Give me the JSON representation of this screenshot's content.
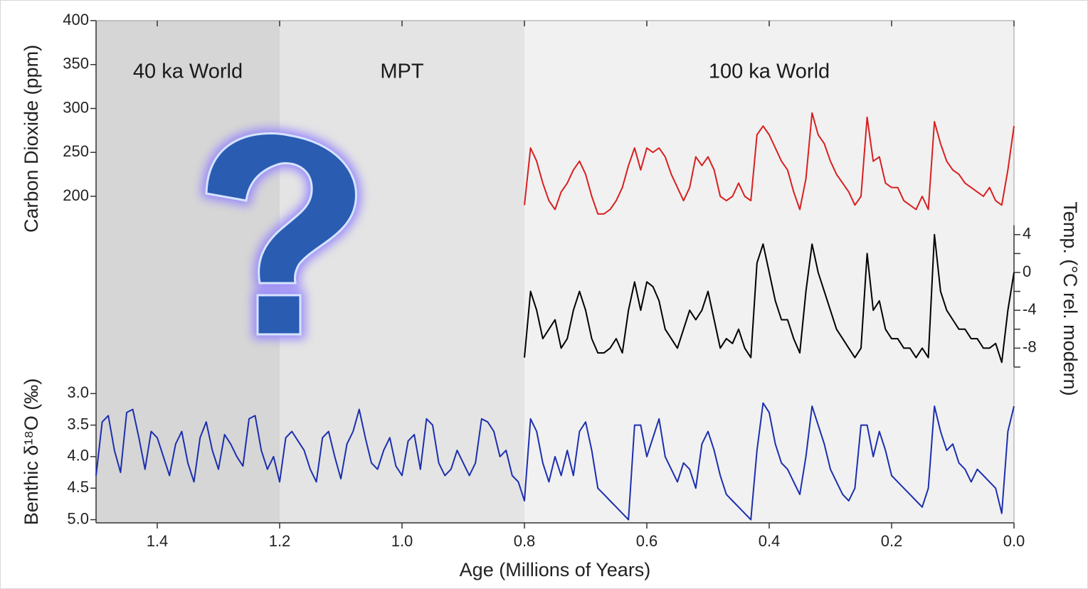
{
  "chart_data": {
    "type": "line",
    "xlabel": "Age (Millions of Years)",
    "ylabel": "Carbon Dioxide (ppm)",
    "y2label": "Temp. (°C rel. modern)",
    "y3label": "Benthic δ¹⁸O (‰)",
    "xlim": [
      1.5,
      0
    ],
    "xticks": [
      1.4,
      1.2,
      {
        "value": 1,
        "label": "1.0"
      },
      0.8,
      0.6,
      0.4,
      0.2,
      {
        "value": 0,
        "label": "0.0"
      }
    ],
    "ylim": [
      170,
      400
    ],
    "yticks": [
      200,
      250,
      300,
      350,
      400
    ],
    "y2lim": [
      -10,
      5
    ],
    "y2ticks": [
      4,
      0,
      -4,
      -8
    ],
    "y2minorticks": [
      2,
      -2,
      -6,
      -10
    ],
    "y3lim": [
      5.05,
      2.85
    ],
    "y3ticks": [
      {
        "value": 3,
        "label": "3.0"
      },
      3.5,
      {
        "value": 4,
        "label": "4.0"
      },
      4.5,
      {
        "value": 5,
        "label": "5.0"
      }
    ],
    "regions": [
      {
        "label": "40 ka World",
        "start": 1.5,
        "end": 1.2,
        "color": "#d6d6d6"
      },
      {
        "label": "MPT",
        "start": 1.2,
        "end": 0.8,
        "color": "#e4e4e4"
      },
      {
        "label": "100 ka World",
        "start": 0.8,
        "end": 0,
        "color": "#f1f1f1"
      }
    ],
    "x": [
      1.5,
      1.49,
      1.48,
      1.47,
      1.46,
      1.45,
      1.44,
      1.43,
      1.42,
      1.41,
      1.4,
      1.39,
      1.38,
      1.37,
      1.36,
      1.35,
      1.34,
      1.33,
      1.32,
      1.31,
      1.3,
      1.29,
      1.28,
      1.27,
      1.26,
      1.25,
      1.24,
      1.23,
      1.22,
      1.21,
      1.2,
      1.19,
      1.18,
      1.17,
      1.16,
      1.15,
      1.14,
      1.13,
      1.12,
      1.11,
      1.1,
      1.09,
      1.08,
      1.07,
      1.06,
      1.05,
      1.04,
      1.03,
      1.02,
      1.01,
      1.0,
      0.99,
      0.98,
      0.97,
      0.96,
      0.95,
      0.94,
      0.93,
      0.92,
      0.91,
      0.9,
      0.89,
      0.88,
      0.87,
      0.86,
      0.85,
      0.84,
      0.83,
      0.82,
      0.81,
      0.8,
      0.79,
      0.78,
      0.77,
      0.76,
      0.75,
      0.74,
      0.73,
      0.72,
      0.71,
      0.7,
      0.69,
      0.68,
      0.67,
      0.66,
      0.65,
      0.64,
      0.63,
      0.62,
      0.61,
      0.6,
      0.59,
      0.58,
      0.57,
      0.56,
      0.55,
      0.54,
      0.53,
      0.52,
      0.51,
      0.5,
      0.49,
      0.48,
      0.47,
      0.46,
      0.45,
      0.44,
      0.43,
      0.42,
      0.41,
      0.4,
      0.39,
      0.38,
      0.37,
      0.36,
      0.35,
      0.34,
      0.33,
      0.32,
      0.31,
      0.3,
      0.29,
      0.28,
      0.27,
      0.26,
      0.25,
      0.24,
      0.23,
      0.22,
      0.21,
      0.2,
      0.19,
      0.18,
      0.17,
      0.16,
      0.15,
      0.14,
      0.13,
      0.12,
      0.11,
      0.1,
      0.09,
      0.08,
      0.07,
      0.06,
      0.05,
      0.04,
      0.03,
      0.02,
      0.01,
      0
    ],
    "series": [
      {
        "color": "#d91f1f",
        "axis": "y",
        "values": [
          null,
          null,
          null,
          null,
          null,
          null,
          null,
          null,
          null,
          null,
          null,
          null,
          null,
          null,
          null,
          null,
          null,
          null,
          null,
          null,
          null,
          null,
          null,
          null,
          null,
          null,
          null,
          null,
          null,
          null,
          null,
          null,
          null,
          null,
          null,
          null,
          null,
          null,
          null,
          null,
          null,
          null,
          null,
          null,
          null,
          null,
          null,
          null,
          null,
          null,
          null,
          null,
          null,
          null,
          null,
          null,
          null,
          null,
          null,
          null,
          null,
          null,
          null,
          null,
          null,
          null,
          null,
          null,
          null,
          null,
          190,
          255,
          240,
          215,
          195,
          185,
          205,
          215,
          230,
          240,
          225,
          200,
          180,
          180,
          185,
          195,
          210,
          235,
          255,
          230,
          255,
          250,
          255,
          245,
          225,
          210,
          195,
          210,
          245,
          235,
          245,
          230,
          200,
          195,
          200,
          215,
          200,
          195,
          270,
          280,
          270,
          255,
          240,
          230,
          205,
          185,
          220,
          295,
          270,
          260,
          240,
          225,
          215,
          205,
          190,
          200,
          290,
          240,
          245,
          215,
          210,
          210,
          195,
          190,
          185,
          200,
          185,
          285,
          260,
          240,
          230,
          225,
          215,
          210,
          205,
          200,
          210,
          195,
          190,
          230,
          280
        ]
      },
      {
        "color": "#000000",
        "axis": "y2",
        "values": [
          null,
          null,
          null,
          null,
          null,
          null,
          null,
          null,
          null,
          null,
          null,
          null,
          null,
          null,
          null,
          null,
          null,
          null,
          null,
          null,
          null,
          null,
          null,
          null,
          null,
          null,
          null,
          null,
          null,
          null,
          null,
          null,
          null,
          null,
          null,
          null,
          null,
          null,
          null,
          null,
          null,
          null,
          null,
          null,
          null,
          null,
          null,
          null,
          null,
          null,
          null,
          null,
          null,
          null,
          null,
          null,
          null,
          null,
          null,
          null,
          null,
          null,
          null,
          null,
          null,
          null,
          null,
          null,
          null,
          null,
          -9,
          -2,
          -4,
          -7,
          -6,
          -5,
          -8,
          -7,
          -4,
          -2,
          -4,
          -7,
          -8.5,
          -8.5,
          -8,
          -7,
          -8.5,
          -4,
          -1,
          -4,
          -1,
          -1.5,
          -3,
          -6,
          -7,
          -8,
          -6,
          -4,
          -5,
          -4,
          -2,
          -5,
          -8,
          -7,
          -7.5,
          -6,
          -8,
          -9,
          1,
          3,
          0,
          -3,
          -5,
          -5,
          -7,
          -8.5,
          -2,
          3,
          0,
          -2,
          -4,
          -6,
          -7,
          -8,
          -9,
          -8,
          2,
          -4,
          -3,
          -6,
          -7,
          -7,
          -8,
          -8,
          -9,
          -8,
          -9,
          4,
          -2,
          -4,
          -5,
          -6,
          -6,
          -7,
          -7,
          -8,
          -8,
          -7.5,
          -9.5,
          -4,
          0
        ]
      },
      {
        "color": "#1c2fae",
        "axis": "y3",
        "values": [
          4.3,
          3.45,
          3.35,
          3.9,
          4.25,
          3.3,
          3.25,
          3.7,
          4.2,
          3.6,
          3.7,
          4.0,
          4.3,
          3.8,
          3.6,
          4.1,
          4.4,
          3.7,
          3.45,
          3.9,
          4.2,
          3.65,
          3.8,
          4.0,
          4.15,
          3.4,
          3.35,
          3.9,
          4.2,
          4.0,
          4.4,
          3.7,
          3.6,
          3.75,
          3.9,
          4.2,
          4.4,
          3.7,
          3.6,
          4.0,
          4.35,
          3.8,
          3.6,
          3.25,
          3.7,
          4.1,
          4.2,
          3.9,
          3.7,
          4.15,
          4.3,
          3.75,
          3.65,
          4.2,
          3.4,
          3.5,
          4.1,
          4.3,
          4.2,
          3.9,
          4.1,
          4.3,
          4.1,
          3.4,
          3.45,
          3.6,
          4.0,
          3.9,
          4.3,
          4.4,
          4.7,
          3.4,
          3.6,
          4.1,
          4.4,
          4.0,
          4.3,
          3.9,
          4.3,
          3.6,
          3.45,
          3.9,
          4.5,
          4.6,
          4.7,
          4.8,
          4.9,
          5.0,
          3.5,
          3.5,
          4.0,
          3.7,
          3.4,
          4.0,
          4.2,
          4.4,
          4.1,
          4.2,
          4.5,
          3.8,
          3.6,
          3.9,
          4.3,
          4.6,
          4.7,
          4.8,
          4.9,
          5.0,
          3.9,
          3.15,
          3.3,
          3.8,
          4.1,
          4.2,
          4.4,
          4.6,
          4.0,
          3.2,
          3.5,
          3.8,
          4.2,
          4.4,
          4.6,
          4.7,
          4.5,
          3.5,
          3.5,
          4.0,
          3.6,
          3.9,
          4.3,
          4.4,
          4.5,
          4.6,
          4.7,
          4.8,
          4.5,
          3.2,
          3.6,
          3.9,
          3.8,
          4.1,
          4.2,
          4.4,
          4.2,
          4.3,
          4.4,
          4.5,
          4.9,
          3.6,
          3.2
        ]
      }
    ]
  }
}
